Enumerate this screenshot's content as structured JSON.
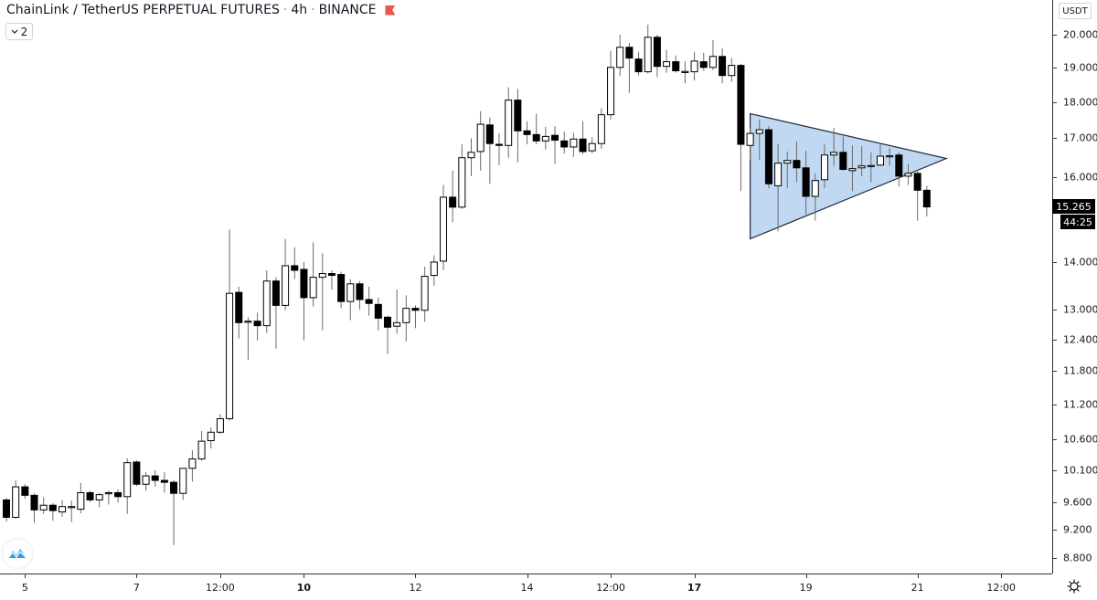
{
  "header": {
    "symbol": "ChainLink / TetherUS PERPETUAL FUTURES",
    "interval": "4h",
    "exchange": "BINANCE",
    "separator": "·",
    "flag_icon": "flag-icon",
    "flag_color": "#ef5350",
    "collapse_count": "2",
    "collapse_icon": "chevron-down-icon"
  },
  "price_axis": {
    "currency": "USDT",
    "last_price": "15.265",
    "countdown": "44:25"
  },
  "settings_icon": "gear-icon",
  "logo_icon": "tradingview-logo-icon",
  "chart_data": {
    "type": "candlestick",
    "interval": "4h",
    "y_scale": "log",
    "ylim": [
      8.6,
      20.8
    ],
    "grid": false,
    "colors": {
      "up_body": "#ffffff",
      "down_body": "#000000",
      "outline": "#000000",
      "wick": "#6b6b6b",
      "pattern_fill": "#b9d4ef",
      "pattern_stroke": "#1e2a38"
    },
    "y_ticks": [
      {
        "value": 20.0,
        "label": "20.000"
      },
      {
        "value": 19.0,
        "label": "19.000"
      },
      {
        "value": 18.0,
        "label": "18.000"
      },
      {
        "value": 17.0,
        "label": "17.000"
      },
      {
        "value": 16.0,
        "label": "16.000"
      },
      {
        "value": 14.0,
        "label": "14.000"
      },
      {
        "value": 13.0,
        "label": "13.000"
      },
      {
        "value": 12.4,
        "label": "12.400"
      },
      {
        "value": 11.8,
        "label": "11.800"
      },
      {
        "value": 11.2,
        "label": "11.200"
      },
      {
        "value": 10.6,
        "label": "10.600"
      },
      {
        "value": 10.1,
        "label": "10.100"
      },
      {
        "value": 9.6,
        "label": "9.600"
      },
      {
        "value": 9.2,
        "label": "9.200"
      },
      {
        "value": 8.8,
        "label": "8.800"
      }
    ],
    "x_ticks": [
      {
        "candle": 2,
        "label": "5",
        "bold": false
      },
      {
        "candle": 14,
        "label": "7",
        "bold": false
      },
      {
        "candle": 23,
        "label": "12:00",
        "bold": false
      },
      {
        "candle": 32,
        "label": "10",
        "bold": true
      },
      {
        "candle": 44,
        "label": "12",
        "bold": false
      },
      {
        "candle": 56,
        "label": "14",
        "bold": false
      },
      {
        "candle": 65,
        "label": "12:00",
        "bold": false
      },
      {
        "candle": 74,
        "label": "17",
        "bold": true
      },
      {
        "candle": 86,
        "label": "19",
        "bold": false
      },
      {
        "candle": 98,
        "label": "21",
        "bold": false
      },
      {
        "candle": 107,
        "label": "12:00",
        "bold": false
      }
    ],
    "ohlc_fields": [
      "open",
      "high",
      "low",
      "close"
    ],
    "candles": [
      [
        9.64,
        9.67,
        9.32,
        9.38
      ],
      [
        9.38,
        9.94,
        9.36,
        9.84
      ],
      [
        9.84,
        9.88,
        9.66,
        9.71
      ],
      [
        9.71,
        9.74,
        9.3,
        9.49
      ],
      [
        9.49,
        9.68,
        9.43,
        9.56
      ],
      [
        9.56,
        9.59,
        9.33,
        9.48
      ],
      [
        9.46,
        9.64,
        9.39,
        9.54
      ],
      [
        9.53,
        9.63,
        9.31,
        9.54
      ],
      [
        9.5,
        9.9,
        9.44,
        9.75
      ],
      [
        9.75,
        9.78,
        9.61,
        9.64
      ],
      [
        9.64,
        9.75,
        9.53,
        9.72
      ],
      [
        9.74,
        9.78,
        9.57,
        9.75
      ],
      [
        9.75,
        9.8,
        9.6,
        9.69
      ],
      [
        9.69,
        10.29,
        9.43,
        10.22
      ],
      [
        10.23,
        10.26,
        9.85,
        9.88
      ],
      [
        9.88,
        10.07,
        9.78,
        10.01
      ],
      [
        10.01,
        10.1,
        9.84,
        9.94
      ],
      [
        9.94,
        10.07,
        9.75,
        9.91
      ],
      [
        9.91,
        9.94,
        8.98,
        9.74
      ],
      [
        9.74,
        10.13,
        9.64,
        10.13
      ],
      [
        10.13,
        10.42,
        9.92,
        10.28
      ],
      [
        10.28,
        10.74,
        10.25,
        10.57
      ],
      [
        10.58,
        10.8,
        10.45,
        10.72
      ],
      [
        10.72,
        11.03,
        10.69,
        10.95
      ],
      [
        10.95,
        14.73,
        10.92,
        13.33
      ],
      [
        13.35,
        13.47,
        12.42,
        12.73
      ],
      [
        12.75,
        12.84,
        12.01,
        12.76
      ],
      [
        12.76,
        12.93,
        12.38,
        12.67
      ],
      [
        12.67,
        13.82,
        12.53,
        13.59
      ],
      [
        13.59,
        13.67,
        12.22,
        13.08
      ],
      [
        13.08,
        14.52,
        12.98,
        13.92
      ],
      [
        13.92,
        14.33,
        13.63,
        13.82
      ],
      [
        13.84,
        14.0,
        12.38,
        13.24
      ],
      [
        13.24,
        14.44,
        13.06,
        13.67
      ],
      [
        13.67,
        14.19,
        12.58,
        13.75
      ],
      [
        13.75,
        13.82,
        13.41,
        13.71
      ],
      [
        13.73,
        13.79,
        13.02,
        13.16
      ],
      [
        13.16,
        13.63,
        12.78,
        13.53
      ],
      [
        13.53,
        13.59,
        13.0,
        13.2
      ],
      [
        13.2,
        13.47,
        12.87,
        13.12
      ],
      [
        13.1,
        13.24,
        12.58,
        12.82
      ],
      [
        12.84,
        12.87,
        12.12,
        12.64
      ],
      [
        12.66,
        13.41,
        12.51,
        12.73
      ],
      [
        12.73,
        13.29,
        12.36,
        13.02
      ],
      [
        13.02,
        13.08,
        12.62,
        12.98
      ],
      [
        12.98,
        13.9,
        12.75,
        13.69
      ],
      [
        13.71,
        14.15,
        13.49,
        14.0
      ],
      [
        14.02,
        15.8,
        13.82,
        15.5
      ],
      [
        15.5,
        16.16,
        14.9,
        15.26
      ],
      [
        15.26,
        16.84,
        15.22,
        16.49
      ],
      [
        16.49,
        17.0,
        16.02,
        16.63
      ],
      [
        16.65,
        17.74,
        16.16,
        17.38
      ],
      [
        17.36,
        17.56,
        15.83,
        16.86
      ],
      [
        16.84,
        17.13,
        16.3,
        16.83
      ],
      [
        16.81,
        18.42,
        16.49,
        18.05
      ],
      [
        18.05,
        18.37,
        16.37,
        17.2
      ],
      [
        17.2,
        17.46,
        16.84,
        17.1
      ],
      [
        17.1,
        17.67,
        16.84,
        16.93
      ],
      [
        16.93,
        17.31,
        16.7,
        17.05
      ],
      [
        17.08,
        17.33,
        16.33,
        16.95
      ],
      [
        16.93,
        17.18,
        16.6,
        16.77
      ],
      [
        16.77,
        17.15,
        16.51,
        16.98
      ],
      [
        16.98,
        17.46,
        16.58,
        16.65
      ],
      [
        16.67,
        17.03,
        16.6,
        16.86
      ],
      [
        16.86,
        17.82,
        16.72,
        17.64
      ],
      [
        17.64,
        19.5,
        17.51,
        19.0
      ],
      [
        19.0,
        20.0,
        18.74,
        19.61
      ],
      [
        19.61,
        19.75,
        18.26,
        19.28
      ],
      [
        19.25,
        19.47,
        18.76,
        18.87
      ],
      [
        18.87,
        20.32,
        18.82,
        19.92
      ],
      [
        19.92,
        20.0,
        18.71,
        19.03
      ],
      [
        19.03,
        19.53,
        18.84,
        19.17
      ],
      [
        19.17,
        19.36,
        18.84,
        18.9
      ],
      [
        18.87,
        19.19,
        18.53,
        18.88
      ],
      [
        18.87,
        19.47,
        18.61,
        19.19
      ],
      [
        19.17,
        19.44,
        18.9,
        19.0
      ],
      [
        19.0,
        19.83,
        18.92,
        19.33
      ],
      [
        19.33,
        19.58,
        18.53,
        18.76
      ],
      [
        18.76,
        19.28,
        18.58,
        19.06
      ],
      [
        19.06,
        19.11,
        15.65,
        16.84
      ],
      [
        16.81,
        17.28,
        16.44,
        17.13
      ],
      [
        17.13,
        17.51,
        16.44,
        17.23
      ],
      [
        17.23,
        17.33,
        15.72,
        15.83
      ],
      [
        15.78,
        16.84,
        14.69,
        16.35
      ],
      [
        16.35,
        16.65,
        15.72,
        16.42
      ],
      [
        16.42,
        16.91,
        15.87,
        16.23
      ],
      [
        16.23,
        16.67,
        15.09,
        15.52
      ],
      [
        15.52,
        16.09,
        14.94,
        15.91
      ],
      [
        15.93,
        16.84,
        15.72,
        16.56
      ],
      [
        16.56,
        17.28,
        16.28,
        16.63
      ],
      [
        16.63,
        17.05,
        16.16,
        16.19
      ],
      [
        16.16,
        16.81,
        15.65,
        16.21
      ],
      [
        16.23,
        16.79,
        16.02,
        16.28
      ],
      [
        16.28,
        16.63,
        15.87,
        16.29
      ],
      [
        16.3,
        16.84,
        16.28,
        16.53
      ],
      [
        16.53,
        16.74,
        16.28,
        16.54
      ],
      [
        16.56,
        16.63,
        15.76,
        16.02
      ],
      [
        16.02,
        16.33,
        15.8,
        16.09
      ],
      [
        16.09,
        16.19,
        14.94,
        15.67
      ],
      [
        15.67,
        15.78,
        15.04,
        15.265
      ]
    ],
    "drawings": [
      {
        "type": "triangle",
        "points": [
          {
            "candle": 80,
            "price": 17.67
          },
          {
            "candle": 80,
            "price": 14.52
          },
          {
            "candle": 101.1,
            "price": 16.47
          }
        ]
      }
    ]
  }
}
